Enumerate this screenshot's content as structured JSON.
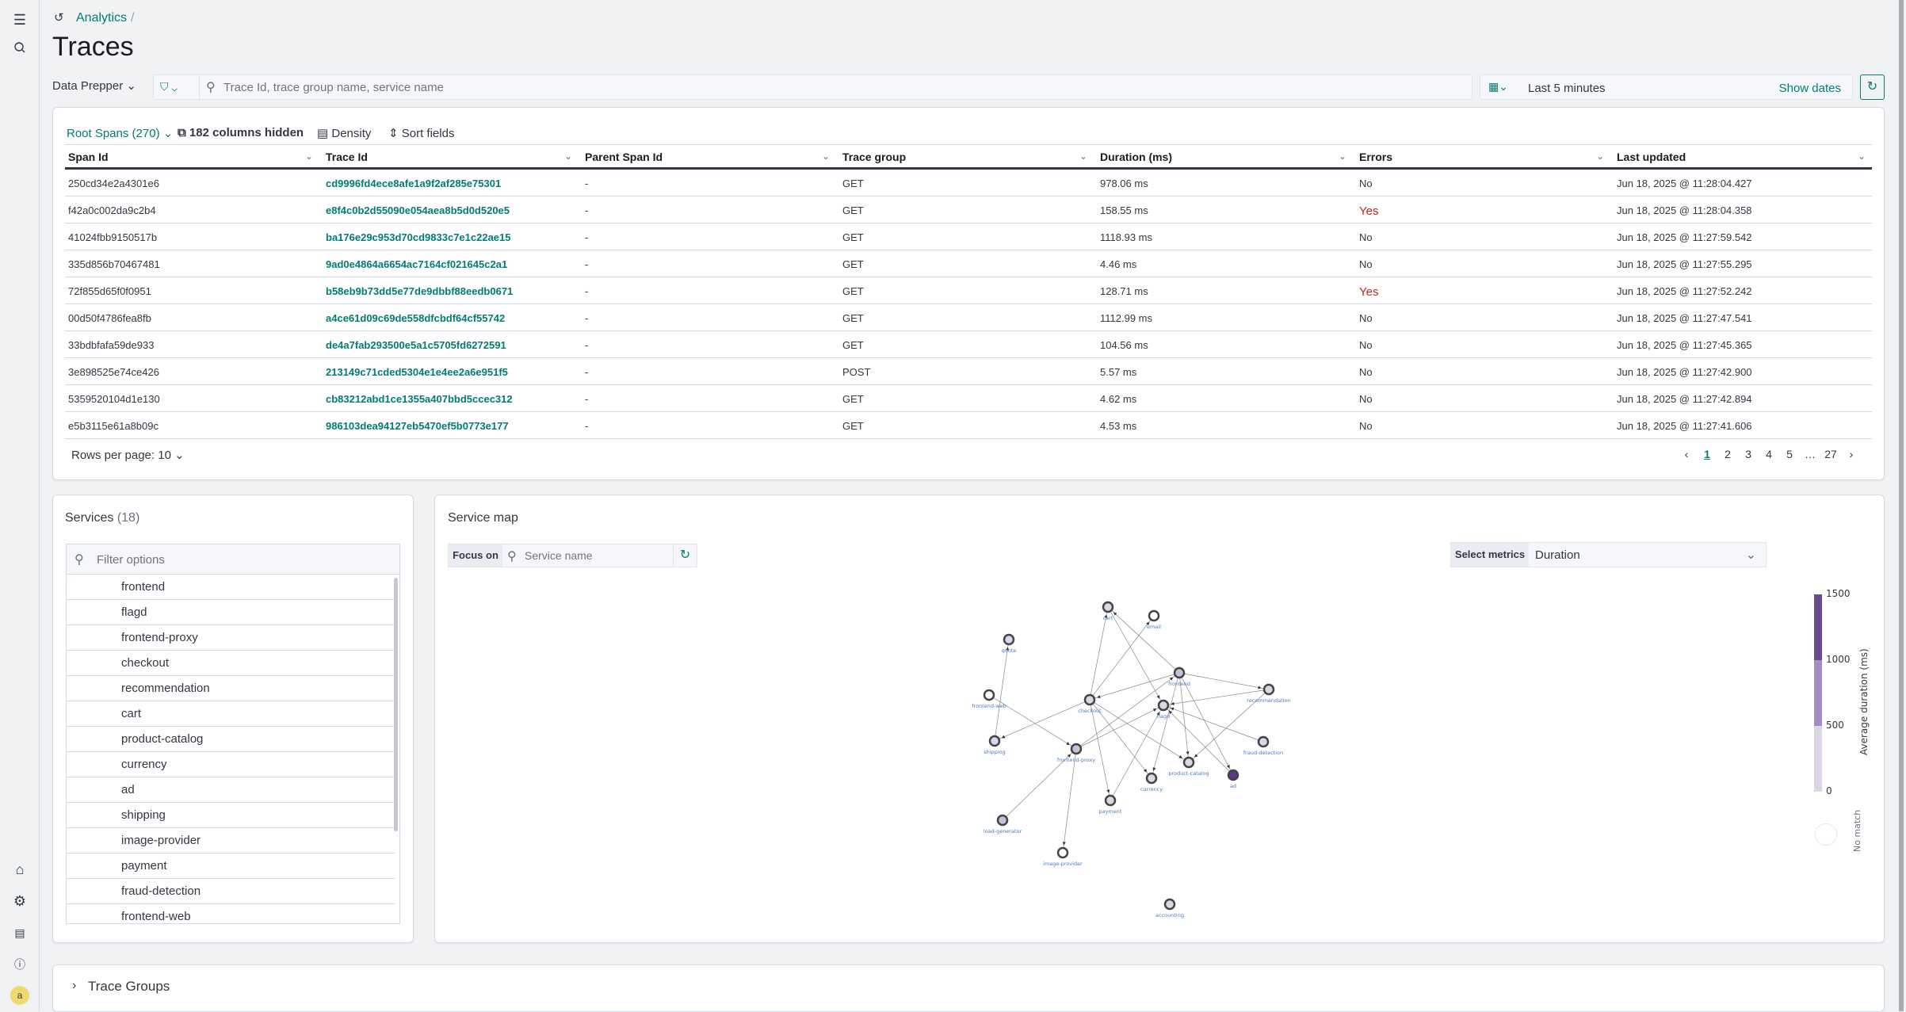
{
  "nav": {
    "avatar": "a"
  },
  "breadcrumb": {
    "root": "Analytics",
    "sep": "/"
  },
  "page_title": "Traces",
  "search": {
    "mode": "Data Prepper",
    "placeholder": "Trace Id, trace group name, service name"
  },
  "date": {
    "range": "Last 5 minutes",
    "show_dates": "Show dates"
  },
  "table": {
    "root_spans": "Root Spans (270)",
    "columns_hidden": "182 columns hidden",
    "density": "Density",
    "sort_fields": "Sort fields",
    "columns": [
      "Span Id",
      "Trace Id",
      "Parent Span Id",
      "Trace group",
      "Duration (ms)",
      "Errors",
      "Last updated"
    ],
    "rows": [
      [
        "250cd34e2a4301e6",
        "cd9996fd4ece8afe1a9f2af285e75301",
        "-",
        "GET",
        "978.06 ms",
        "No",
        "Jun 18, 2025 @ 11:28:04.427"
      ],
      [
        "f42a0c002da9c2b4",
        "e8f4c0b2d55090e054aea8b5d0d520e5",
        "-",
        "GET",
        "158.55 ms",
        "Yes",
        "Jun 18, 2025 @ 11:28:04.358"
      ],
      [
        "41024fbb9150517b",
        "ba176e29c953d70cd9833c7e1c22ae15",
        "-",
        "GET",
        "1118.93 ms",
        "No",
        "Jun 18, 2025 @ 11:27:59.542"
      ],
      [
        "335d856b70467481",
        "9ad0e4864a6654ac7164cf021645c2a1",
        "-",
        "GET",
        "4.46 ms",
        "No",
        "Jun 18, 2025 @ 11:27:55.295"
      ],
      [
        "72f855d65f0f0951",
        "b58eb9b73dd5e77de9dbbf88eedb0671",
        "-",
        "GET",
        "128.71 ms",
        "Yes",
        "Jun 18, 2025 @ 11:27:52.242"
      ],
      [
        "00d50f4786fea8fb",
        "a4ce61d09c69de558dfcbdf64cf55742",
        "-",
        "GET",
        "1112.99 ms",
        "No",
        "Jun 18, 2025 @ 11:27:47.541"
      ],
      [
        "33bdbfafa59de933",
        "de4a7fab293500e5a1c5705fd6272591",
        "-",
        "GET",
        "104.56 ms",
        "No",
        "Jun 18, 2025 @ 11:27:45.365"
      ],
      [
        "3e898525e74ce426",
        "213149c71cded5304e1e4ee2a6e951f5",
        "-",
        "POST",
        "5.57 ms",
        "No",
        "Jun 18, 2025 @ 11:27:42.900"
      ],
      [
        "5359520104d1e130",
        "cb83212abd1ce1355a407bbd5ccec312",
        "-",
        "GET",
        "4.62 ms",
        "No",
        "Jun 18, 2025 @ 11:27:42.894"
      ],
      [
        "e5b3115e61a8b09c",
        "986103dea94127eb5470ef5b0773e177",
        "-",
        "GET",
        "4.53 ms",
        "No",
        "Jun 18, 2025 @ 11:27:41.606"
      ]
    ],
    "rows_per_page": "Rows per page: 10",
    "pages": [
      "1",
      "2",
      "3",
      "4",
      "5",
      "…",
      "27"
    ],
    "current_page": "1"
  },
  "services": {
    "title": "Services",
    "count": "(18)",
    "filter_placeholder": "Filter options",
    "items": [
      "frontend",
      "flagd",
      "frontend-proxy",
      "checkout",
      "recommendation",
      "cart",
      "product-catalog",
      "currency",
      "ad",
      "shipping",
      "image-provider",
      "payment",
      "fraud-detection",
      "frontend-web"
    ]
  },
  "service_map": {
    "title": "Service map",
    "focus_label": "Focus on",
    "focus_placeholder": "Service name",
    "metrics_label": "Select metrics",
    "metric": "Duration",
    "legend": {
      "title": "Average duration (ms)",
      "ticks": [
        "1500",
        "1000",
        "500",
        "0"
      ],
      "colors": [
        "#6a4a94",
        "#a58cc4",
        "#dcd6e6"
      ],
      "no_match": "No match"
    },
    "nodes": [
      {
        "name": "cart",
        "level": 0
      },
      {
        "name": "email",
        "level": -1
      },
      {
        "name": "quote",
        "level": 0
      },
      {
        "name": "frontend",
        "level": 1
      },
      {
        "name": "recommendation",
        "level": 0
      },
      {
        "name": "frontend-web",
        "level": -1
      },
      {
        "name": "checkout",
        "level": 0
      },
      {
        "name": "flagd",
        "level": 0
      },
      {
        "name": "shipping",
        "level": 0
      },
      {
        "name": "fraud-detection",
        "level": 0
      },
      {
        "name": "frontend-proxy",
        "level": 1
      },
      {
        "name": "product-catalog",
        "level": 0
      },
      {
        "name": "ad",
        "level": 2
      },
      {
        "name": "currency",
        "level": 0
      },
      {
        "name": "payment",
        "level": 0
      },
      {
        "name": "load-generator",
        "level": 1
      },
      {
        "name": "image-provider",
        "level": -1
      },
      {
        "name": "accounting",
        "level": 0
      }
    ],
    "edges": [
      [
        "checkout",
        "cart"
      ],
      [
        "checkout",
        "email"
      ],
      [
        "shipping",
        "quote"
      ],
      [
        "frontend",
        "checkout"
      ],
      [
        "frontend",
        "recommendation"
      ],
      [
        "frontend",
        "cart"
      ],
      [
        "frontend",
        "currency"
      ],
      [
        "frontend",
        "product-catalog"
      ],
      [
        "frontend",
        "ad"
      ],
      [
        "frontend-web",
        "frontend-proxy"
      ],
      [
        "checkout",
        "shipping"
      ],
      [
        "checkout",
        "payment"
      ],
      [
        "checkout",
        "currency"
      ],
      [
        "checkout",
        "product-catalog"
      ],
      [
        "cart",
        "flagd"
      ],
      [
        "recommendation",
        "flagd"
      ],
      [
        "recommendation",
        "product-catalog"
      ],
      [
        "frontend-proxy",
        "frontend"
      ],
      [
        "frontend-proxy",
        "flagd"
      ],
      [
        "frontend-proxy",
        "image-provider"
      ],
      [
        "load-generator",
        "frontend-proxy"
      ],
      [
        "payment",
        "flagd"
      ],
      [
        "fraud-detection",
        "flagd"
      ],
      [
        "ad",
        "flagd"
      ]
    ]
  },
  "trace_groups": {
    "title": "Trace Groups"
  }
}
